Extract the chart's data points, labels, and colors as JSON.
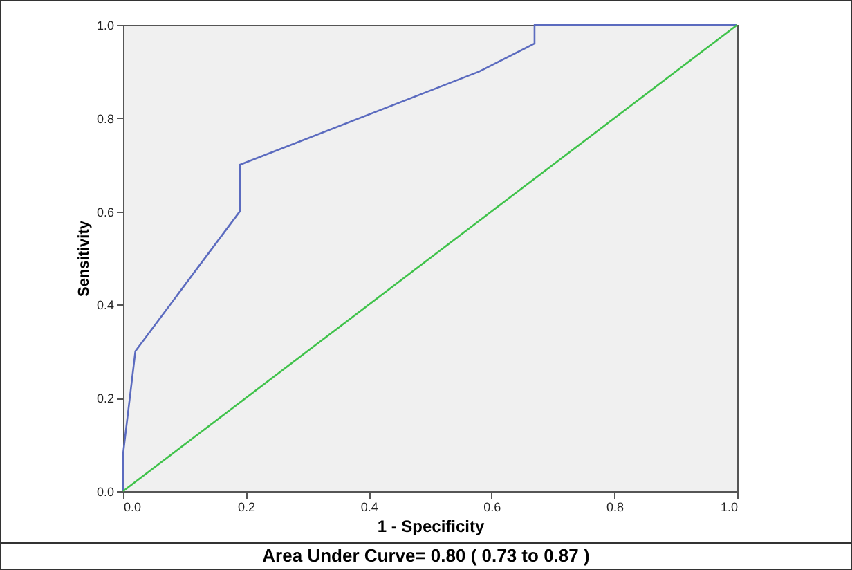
{
  "chart_data": {
    "type": "line",
    "xlabel": "1 - Specificity",
    "ylabel": "Sensitivity",
    "series": [
      {
        "color": "#5b6bbf",
        "x": [
          0,
          0,
          0.02,
          0.19,
          0.19,
          0.58,
          0.67,
          0.67,
          1
        ],
        "values": [
          0,
          0.08,
          0.3,
          0.6,
          0.7,
          0.9,
          0.96,
          1,
          1
        ]
      },
      {
        "color": "#3fc24a",
        "x": [
          0,
          1
        ],
        "values": [
          0,
          1
        ]
      }
    ],
    "xlim": [
      0,
      1
    ],
    "ylim": [
      0,
      1
    ],
    "xticks": [
      {
        "value": 0,
        "label": "0.0"
      },
      {
        "value": 0.2,
        "label": "0.2"
      },
      {
        "value": 0.4,
        "label": "0.4"
      },
      {
        "value": 0.6,
        "label": "0.6"
      },
      {
        "value": 0.8,
        "label": "0.8"
      },
      {
        "value": 1,
        "label": "1.0"
      }
    ],
    "yticks": [
      {
        "value": 0,
        "label": "0.0"
      },
      {
        "value": 0.2,
        "label": "0.2"
      },
      {
        "value": 0.4,
        "label": "0.4"
      },
      {
        "value": 0.6,
        "label": "0.6"
      },
      {
        "value": 0.8,
        "label": "0.8"
      },
      {
        "value": 1,
        "label": "1.0"
      }
    ],
    "marker": "none",
    "line_style": "solid",
    "annotations": [
      "Area Under Curve= 0.80 ( 0.73 to 0.87 )"
    ]
  }
}
